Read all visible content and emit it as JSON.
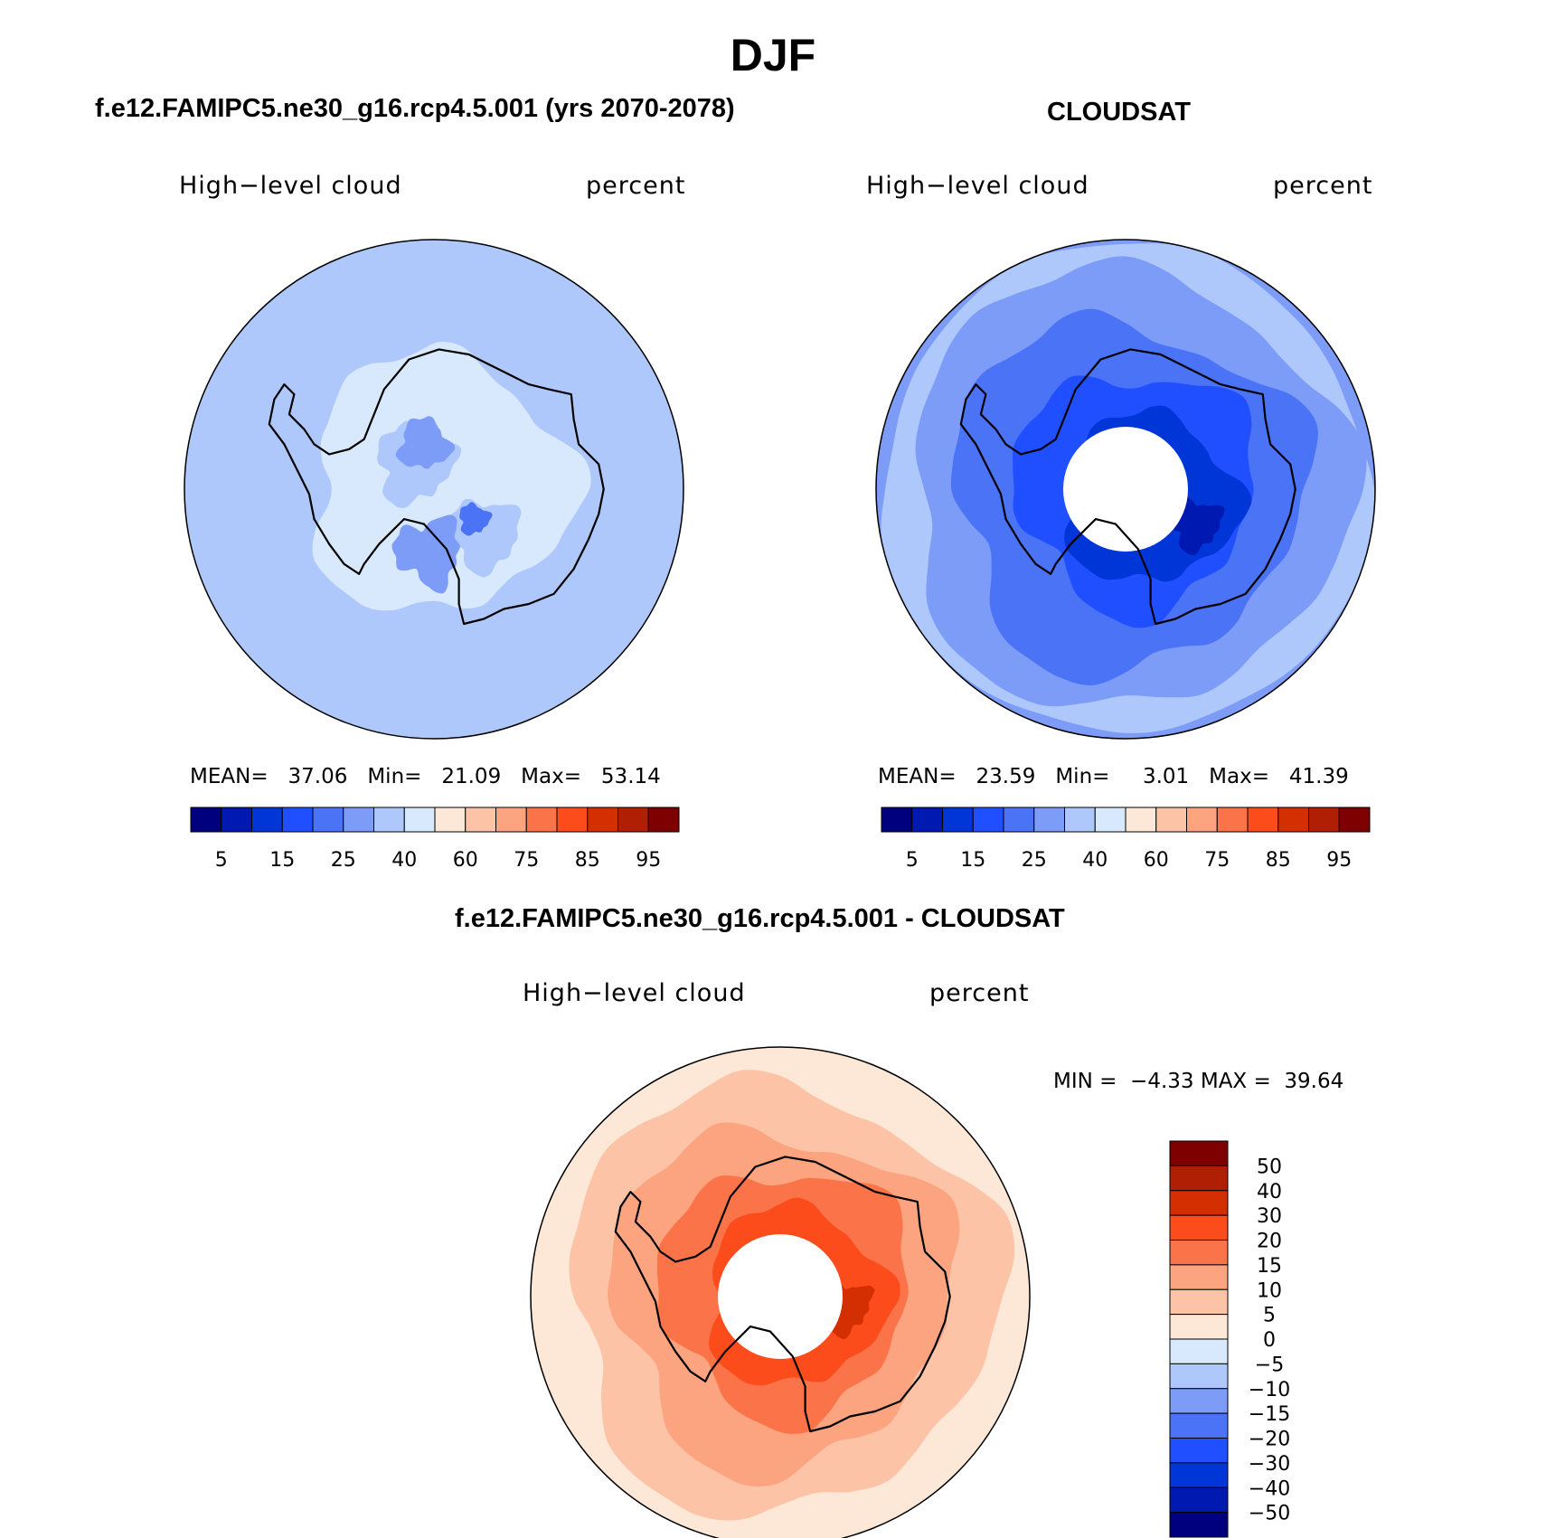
{
  "title": "DJF",
  "panels": [
    {
      "title": "f.e12.FAMIPC5.ne30_g16.rcp4.5.001 (yrs 2070-2078)",
      "variable": "High−level cloud",
      "units": "percent",
      "stats": {
        "mean_label": "MEAN=",
        "mean": "37.06",
        "min_label": "Min=",
        "min": "21.09",
        "max_label": "Max=",
        "max": "53.14"
      }
    },
    {
      "title": "CLOUDSAT",
      "variable": "High−level cloud",
      "units": "percent",
      "stats": {
        "mean_label": "MEAN=",
        "mean": "23.59",
        "min_label": "Min=",
        "min": "3.01",
        "max_label": "Max=",
        "max": "41.39"
      }
    },
    {
      "title": "f.e12.FAMIPC5.ne30_g16.rcp4.5.001 - CLOUDSAT",
      "variable": "High−level cloud",
      "units": "percent",
      "stats": {
        "min_label": "MIN =",
        "min": "−4.33",
        "max_label": "MAX =",
        "max": "39.64"
      }
    }
  ],
  "colorbar_abs": {
    "colors": [
      "#00007f",
      "#0019b0",
      "#0035d8",
      "#1f4fff",
      "#4a73f5",
      "#7c9cf7",
      "#aec8fb",
      "#d8e9fd",
      "#fde7d6",
      "#fcc3a6",
      "#fca37f",
      "#fb7449",
      "#fc4c1c",
      "#d42f03",
      "#b01e04",
      "#7f0000"
    ],
    "ticks": [
      "5",
      "15",
      "25",
      "40",
      "60",
      "75",
      "85",
      "95"
    ]
  },
  "colorbar_diff": {
    "colors": [
      "#00007f",
      "#0019b0",
      "#0035d8",
      "#1f4fff",
      "#4a73f5",
      "#7c9cf7",
      "#aec8fb",
      "#d8e9fd",
      "#fde7d6",
      "#fcc3a6",
      "#fca37f",
      "#fb7449",
      "#fc4c1c",
      "#d42f03",
      "#b01e04",
      "#7f0000"
    ],
    "ticks": [
      "−50",
      "−40",
      "−30",
      "−20",
      "−15",
      "−10",
      "−5",
      "0",
      "5",
      "10",
      "15",
      "20",
      "30",
      "40",
      "50"
    ]
  },
  "chart_data": [
    {
      "type": "heatmap",
      "projection": "south-polar-stereographic",
      "title": "f.e12.FAMIPC5.ne30_g16.rcp4.5.001 (yrs 2070-2078)",
      "field": "High−level cloud",
      "units": "percent",
      "mean": 37.06,
      "min": 21.09,
      "max": 53.14,
      "levels": [
        5,
        10,
        15,
        20,
        25,
        30,
        40,
        50,
        60,
        70,
        75,
        80,
        85,
        90,
        95
      ],
      "dominant_fill": "#aec8fb"
    },
    {
      "type": "heatmap",
      "projection": "south-polar-stereographic",
      "title": "CLOUDSAT",
      "field": "High−level cloud",
      "units": "percent",
      "mean": 23.59,
      "min": 3.01,
      "max": 41.39,
      "levels": [
        5,
        10,
        15,
        20,
        25,
        30,
        40,
        50,
        60,
        70,
        75,
        80,
        85,
        90,
        95
      ],
      "dominant_fill": "#4a73f5"
    },
    {
      "type": "heatmap",
      "projection": "south-polar-stereographic",
      "title": "f.e12.FAMIPC5.ne30_g16.rcp4.5.001 - CLOUDSAT",
      "field": "High−level cloud",
      "units": "percent",
      "min": -4.33,
      "max": 39.64,
      "levels": [
        -50,
        -40,
        -30,
        -20,
        -15,
        -10,
        -5,
        0,
        5,
        10,
        15,
        20,
        30,
        40,
        50
      ],
      "dominant_fill": "#fca37f"
    }
  ]
}
